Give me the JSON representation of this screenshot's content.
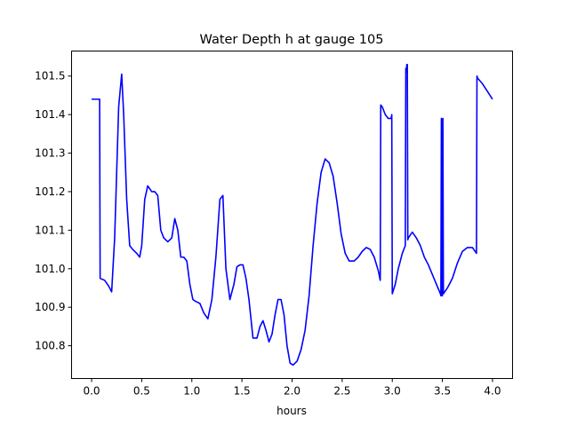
{
  "chart_data": {
    "type": "line",
    "title": "Water Depth h at gauge 105",
    "xlabel": "hours",
    "ylabel": "",
    "xlim": [
      -0.2,
      4.2
    ],
    "ylim": [
      100.715,
      101.565
    ],
    "grid": false,
    "xticks": [
      0.0,
      0.5,
      1.0,
      1.5,
      2.0,
      2.5,
      3.0,
      3.5,
      4.0
    ],
    "xtick_labels": [
      "0.0",
      "0.5",
      "1.0",
      "1.5",
      "2.0",
      "2.5",
      "3.0",
      "3.5",
      "4.0"
    ],
    "yticks": [
      100.8,
      100.9,
      101.0,
      101.1,
      101.2,
      101.3,
      101.4,
      101.5
    ],
    "ytick_labels": [
      "100.8",
      "100.9",
      "101.0",
      "101.1",
      "101.2",
      "101.3",
      "101.4",
      "101.5"
    ],
    "series": [
      {
        "color": "#0000ff",
        "x": [
          0.0,
          0.08,
          0.085,
          0.13,
          0.17,
          0.2,
          0.23,
          0.27,
          0.3,
          0.32,
          0.35,
          0.38,
          0.41,
          0.45,
          0.48,
          0.5,
          0.53,
          0.56,
          0.6,
          0.63,
          0.66,
          0.69,
          0.72,
          0.76,
          0.8,
          0.83,
          0.86,
          0.89,
          0.92,
          0.95,
          0.98,
          1.01,
          1.04,
          1.08,
          1.12,
          1.16,
          1.2,
          1.24,
          1.28,
          1.31,
          1.34,
          1.38,
          1.42,
          1.45,
          1.48,
          1.51,
          1.54,
          1.57,
          1.61,
          1.65,
          1.68,
          1.71,
          1.74,
          1.77,
          1.8,
          1.83,
          1.86,
          1.89,
          1.92,
          1.95,
          1.98,
          2.01,
          2.05,
          2.09,
          2.13,
          2.17,
          2.21,
          2.25,
          2.29,
          2.33,
          2.37,
          2.41,
          2.45,
          2.49,
          2.53,
          2.57,
          2.62,
          2.66,
          2.7,
          2.74,
          2.78,
          2.82,
          2.86,
          2.88,
          2.885,
          2.9,
          2.93,
          2.96,
          2.99,
          2.995,
          3.0,
          3.03,
          3.06,
          3.1,
          3.13,
          3.135,
          3.14,
          3.145,
          3.15,
          3.155,
          3.16,
          3.2,
          3.24,
          3.28,
          3.32,
          3.36,
          3.4,
          3.44,
          3.48,
          3.485,
          3.49,
          3.495,
          3.5,
          3.505,
          3.51,
          3.55,
          3.6,
          3.65,
          3.7,
          3.75,
          3.8,
          3.84,
          3.845,
          3.85,
          3.9,
          3.95,
          4.0
        ],
        "y": [
          101.44,
          101.44,
          100.975,
          100.97,
          100.955,
          100.94,
          101.08,
          101.42,
          101.505,
          101.4,
          101.18,
          101.06,
          101.05,
          101.04,
          101.03,
          101.06,
          101.18,
          101.215,
          101.2,
          101.2,
          101.19,
          101.1,
          101.08,
          101.07,
          101.08,
          101.13,
          101.1,
          101.03,
          101.03,
          101.02,
          100.96,
          100.92,
          100.915,
          100.91,
          100.885,
          100.87,
          100.92,
          101.03,
          101.18,
          101.19,
          101.0,
          100.92,
          100.96,
          101.005,
          101.01,
          101.01,
          100.975,
          100.92,
          100.82,
          100.82,
          100.85,
          100.865,
          100.84,
          100.81,
          100.83,
          100.88,
          100.92,
          100.92,
          100.88,
          100.8,
          100.755,
          100.75,
          100.76,
          100.79,
          100.84,
          100.93,
          101.06,
          101.17,
          101.25,
          101.285,
          101.275,
          101.24,
          101.17,
          101.09,
          101.04,
          101.02,
          101.02,
          101.03,
          101.045,
          101.055,
          101.05,
          101.03,
          100.995,
          100.97,
          101.425,
          101.42,
          101.4,
          101.39,
          101.39,
          101.4,
          100.935,
          100.96,
          101.0,
          101.04,
          101.06,
          101.52,
          101.51,
          101.53,
          101.53,
          101.075,
          101.08,
          101.095,
          101.08,
          101.06,
          101.03,
          101.01,
          100.985,
          100.96,
          100.935,
          100.93,
          101.39,
          100.93,
          100.93,
          101.39,
          100.935,
          100.95,
          100.975,
          101.015,
          101.045,
          101.055,
          101.055,
          101.04,
          101.5,
          101.495,
          101.48,
          101.46,
          101.44
        ]
      }
    ]
  }
}
